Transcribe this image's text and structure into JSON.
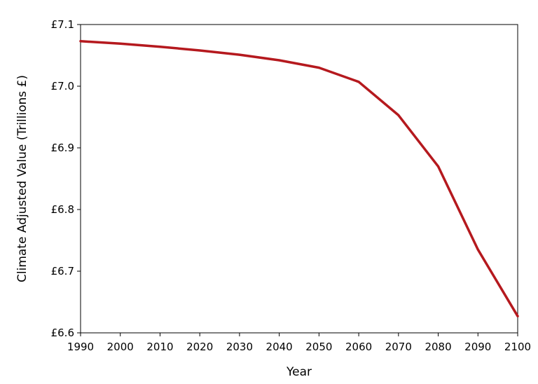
{
  "chart_data": {
    "type": "line",
    "title": "",
    "xlabel": "Year",
    "ylabel": "Climate Adjusted Value (Trillions £)",
    "xlim": [
      1990,
      2100
    ],
    "ylim": [
      6.6,
      7.1
    ],
    "x_ticks": [
      1990,
      2000,
      2010,
      2020,
      2030,
      2040,
      2050,
      2060,
      2070,
      2080,
      2090,
      2100
    ],
    "y_ticks": [
      6.6,
      6.7,
      6.8,
      6.9,
      7.0,
      7.1
    ],
    "y_tick_labels": [
      "£6.6",
      "£6.7",
      "£6.8",
      "£6.9",
      "£7.0",
      "£7.1"
    ],
    "grid": false,
    "series": [
      {
        "color": "#b5191e",
        "x": [
          1990,
          2000,
          2010,
          2020,
          2030,
          2040,
          2050,
          2060,
          2070,
          2080,
          2090,
          2100
        ],
        "values": [
          7.073,
          7.069,
          7.064,
          7.058,
          7.051,
          7.042,
          7.03,
          7.007,
          6.953,
          6.87,
          6.735,
          6.627
        ]
      }
    ]
  }
}
